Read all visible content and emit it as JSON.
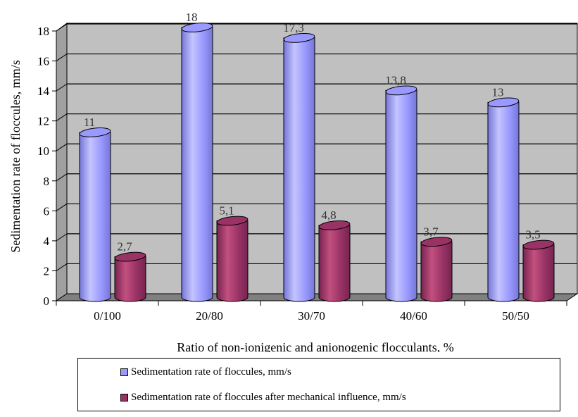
{
  "chart_data": {
    "type": "bar",
    "xlabel": "Ratio of non-ionigenic and anionogenic flocculants, %",
    "ylabel": "Sedimentation rate of floccules, mm/s",
    "categories": [
      "0/100",
      "20/80",
      "30/70",
      "40/60",
      "50/50"
    ],
    "ylim": [
      0,
      18
    ],
    "ytick_step": 2,
    "grid": true,
    "legend_position": "bottom",
    "series": [
      {
        "name": "Sedimentation rate of floccules, mm/s",
        "values": [
          11,
          18,
          17.3,
          13.8,
          13
        ],
        "labels": [
          "11",
          "18",
          "17,3",
          "13,8",
          "13"
        ],
        "color": "#9999ff",
        "color_light": "#c4c4ff",
        "color_dark": "#7676d8"
      },
      {
        "name": "Sedimentation rate of floccules after mechanical influence, mm/s",
        "values": [
          2.7,
          5.1,
          4.8,
          3.7,
          3.5
        ],
        "labels": [
          "2,7",
          "5,1",
          "4,8",
          "3,7",
          "3,5"
        ],
        "color": "#993366",
        "color_light": "#c2507f",
        "color_dark": "#772450"
      }
    ]
  }
}
